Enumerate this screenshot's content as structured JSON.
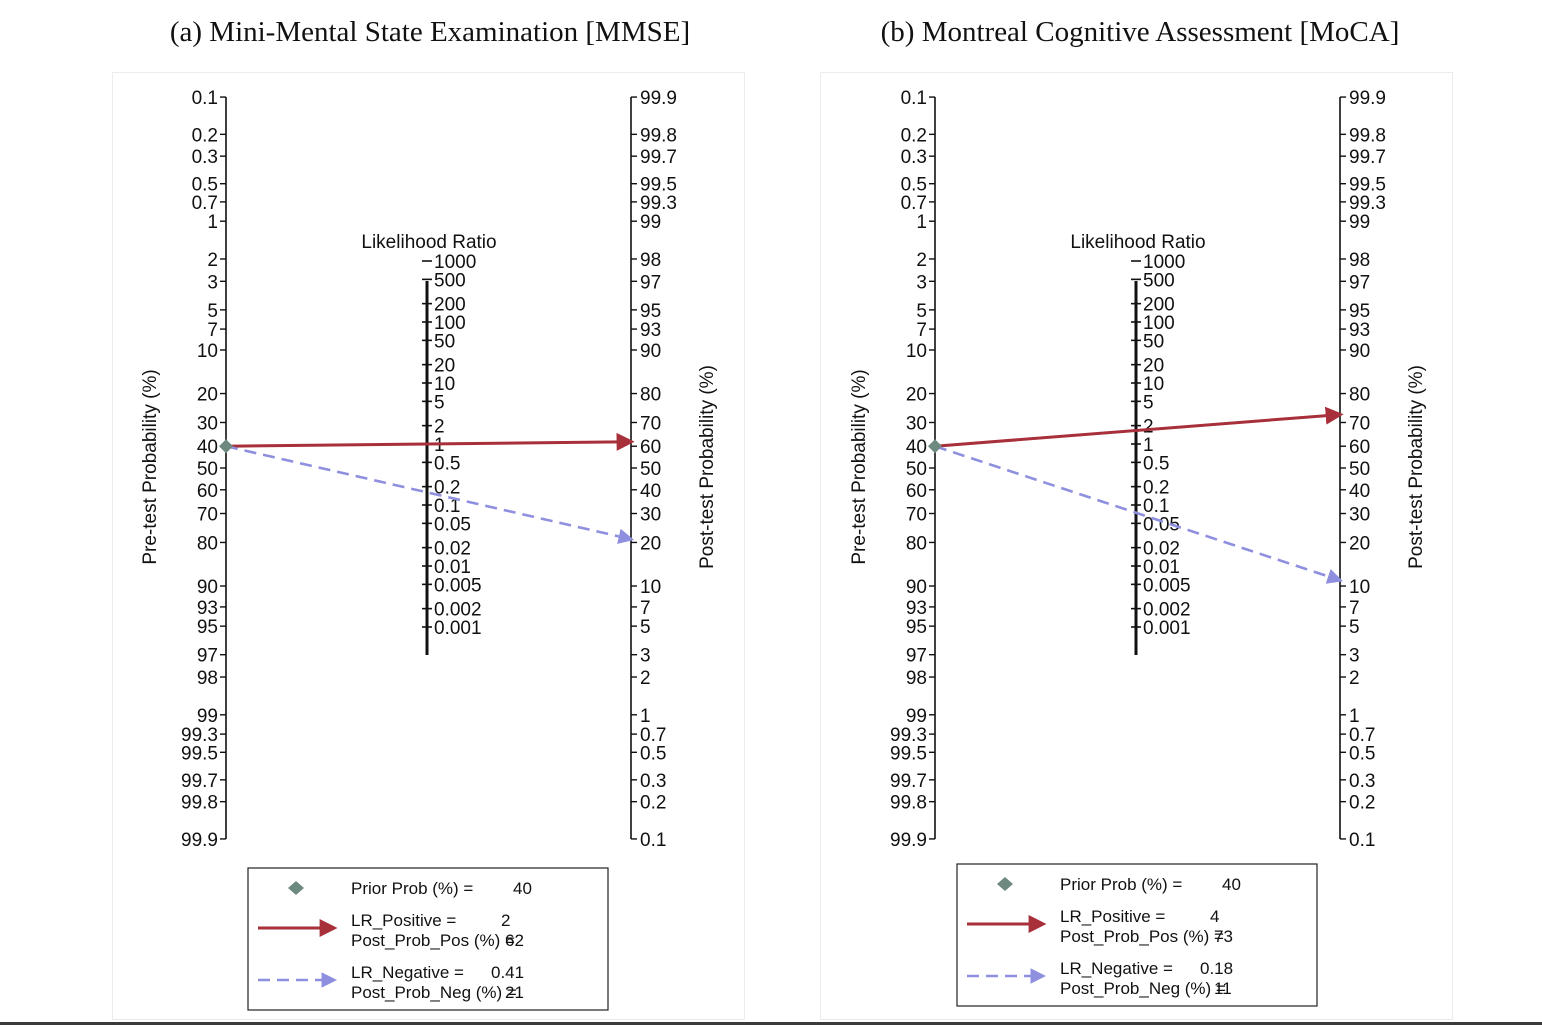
{
  "panels": {
    "a": {
      "title": "(a) Mini-Mental State Examination [MMSE]"
    },
    "b": {
      "title": "(b) Montreal Cognitive Assessment [MoCA]"
    }
  },
  "colors": {
    "positive_line": "#a8303a",
    "negative_line": "#8f8fe0",
    "prior_marker": "#6e8a80",
    "axis": "#111111"
  },
  "chart_data": [
    {
      "type": "line",
      "subtype": "fagan-nomogram",
      "title": "(a) Mini-Mental State Examination [MMSE]",
      "left_axis_label": "Pre-test Probability (%)",
      "right_axis_label": "Post-test Probability (%)",
      "center_axis_label": "Likelihood Ratio",
      "left_ticks": [
        "0.1",
        "0.2",
        "0.3",
        "0.5",
        "0.7",
        "1",
        "2",
        "3",
        "5",
        "7",
        "10",
        "20",
        "30",
        "40",
        "50",
        "60",
        "70",
        "80",
        "90",
        "93",
        "95",
        "97",
        "98",
        "99",
        "99.3",
        "99.5",
        "99.7",
        "99.8",
        "99.9"
      ],
      "right_ticks": [
        "99.9",
        "99.8",
        "99.7",
        "99.5",
        "99.3",
        "99",
        "98",
        "97",
        "95",
        "93",
        "90",
        "80",
        "70",
        "60",
        "50",
        "40",
        "30",
        "20",
        "10",
        "7",
        "5",
        "3",
        "2",
        "1",
        "0.7",
        "0.5",
        "0.3",
        "0.2",
        "0.1"
      ],
      "lr_ticks": [
        "1000",
        "500",
        "200",
        "100",
        "50",
        "20",
        "10",
        "5",
        "2",
        "1",
        "0.5",
        "0.2",
        "0.1",
        "0.05",
        "0.02",
        "0.01",
        "0.005",
        "0.002",
        "0.001"
      ],
      "prior_prob": 40,
      "lr_positive": 2,
      "post_prob_pos": 62,
      "lr_negative": 0.41,
      "post_prob_neg": 21,
      "legend": {
        "prior": "Prior Prob (%) =",
        "prior_val": "40",
        "lr_pos": "LR_Positive =",
        "lr_pos_val": "2",
        "post_pos": "Post_Prob_Pos (%) =",
        "post_pos_val": "62",
        "lr_neg": "LR_Negative =",
        "lr_neg_val": "0.41",
        "post_neg": "Post_Prob_Neg (%) =",
        "post_neg_val": "21"
      }
    },
    {
      "type": "line",
      "subtype": "fagan-nomogram",
      "title": "(b) Montreal Cognitive Assessment [MoCA]",
      "left_axis_label": "Pre-test Probability (%)",
      "right_axis_label": "Post-test Probability (%)",
      "center_axis_label": "Likelihood Ratio",
      "left_ticks": [
        "0.1",
        "0.2",
        "0.3",
        "0.5",
        "0.7",
        "1",
        "2",
        "3",
        "5",
        "7",
        "10",
        "20",
        "30",
        "40",
        "50",
        "60",
        "70",
        "80",
        "90",
        "93",
        "95",
        "97",
        "98",
        "99",
        "99.3",
        "99.5",
        "99.7",
        "99.8",
        "99.9"
      ],
      "right_ticks": [
        "99.9",
        "99.8",
        "99.7",
        "99.5",
        "99.3",
        "99",
        "98",
        "97",
        "95",
        "93",
        "90",
        "80",
        "70",
        "60",
        "50",
        "40",
        "30",
        "20",
        "10",
        "7",
        "5",
        "3",
        "2",
        "1",
        "0.7",
        "0.5",
        "0.3",
        "0.2",
        "0.1"
      ],
      "lr_ticks": [
        "1000",
        "500",
        "200",
        "100",
        "50",
        "20",
        "10",
        "5",
        "2",
        "1",
        "0.5",
        "0.2",
        "0.1",
        "0.05",
        "0.02",
        "0.01",
        "0.005",
        "0.002",
        "0.001"
      ],
      "prior_prob": 40,
      "lr_positive": 4,
      "post_prob_pos": 73,
      "lr_negative": 0.18,
      "post_prob_neg": 11,
      "legend": {
        "prior": "Prior Prob (%) =",
        "prior_val": "40",
        "lr_pos": "LR_Positive =",
        "lr_pos_val": "4",
        "post_pos": "Post_Prob_Pos (%) =",
        "post_pos_val": "73",
        "lr_neg": "LR_Negative =",
        "lr_neg_val": "0.18",
        "post_neg": "Post_Prob_Neg (%) =",
        "post_neg_val": "11"
      }
    }
  ]
}
